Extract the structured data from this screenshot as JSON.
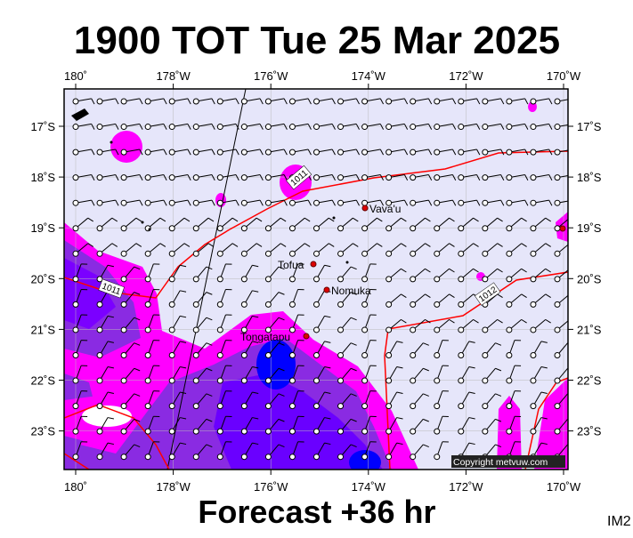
{
  "title": "1900 TOT Tue 25 Mar 2025",
  "footer": "Forecast +36 hr",
  "image_id": "IM2",
  "copyright": "Copyright metvuw.com",
  "longitude_labels": [
    "180˚",
    "178˚W",
    "176˚W",
    "174˚W",
    "172˚W",
    "170˚W"
  ],
  "latitude_labels": [
    "17˚S",
    "18˚S",
    "19˚S",
    "20˚S",
    "21˚S",
    "22˚S",
    "23˚S"
  ],
  "places": [
    {
      "label": "Vava'u"
    },
    {
      "label": "Tofua"
    },
    {
      "label": "Nomuka"
    },
    {
      "label": "Tongatapu"
    }
  ],
  "isobar_labels": [
    "1011",
    "1011",
    "1012"
  ]
}
